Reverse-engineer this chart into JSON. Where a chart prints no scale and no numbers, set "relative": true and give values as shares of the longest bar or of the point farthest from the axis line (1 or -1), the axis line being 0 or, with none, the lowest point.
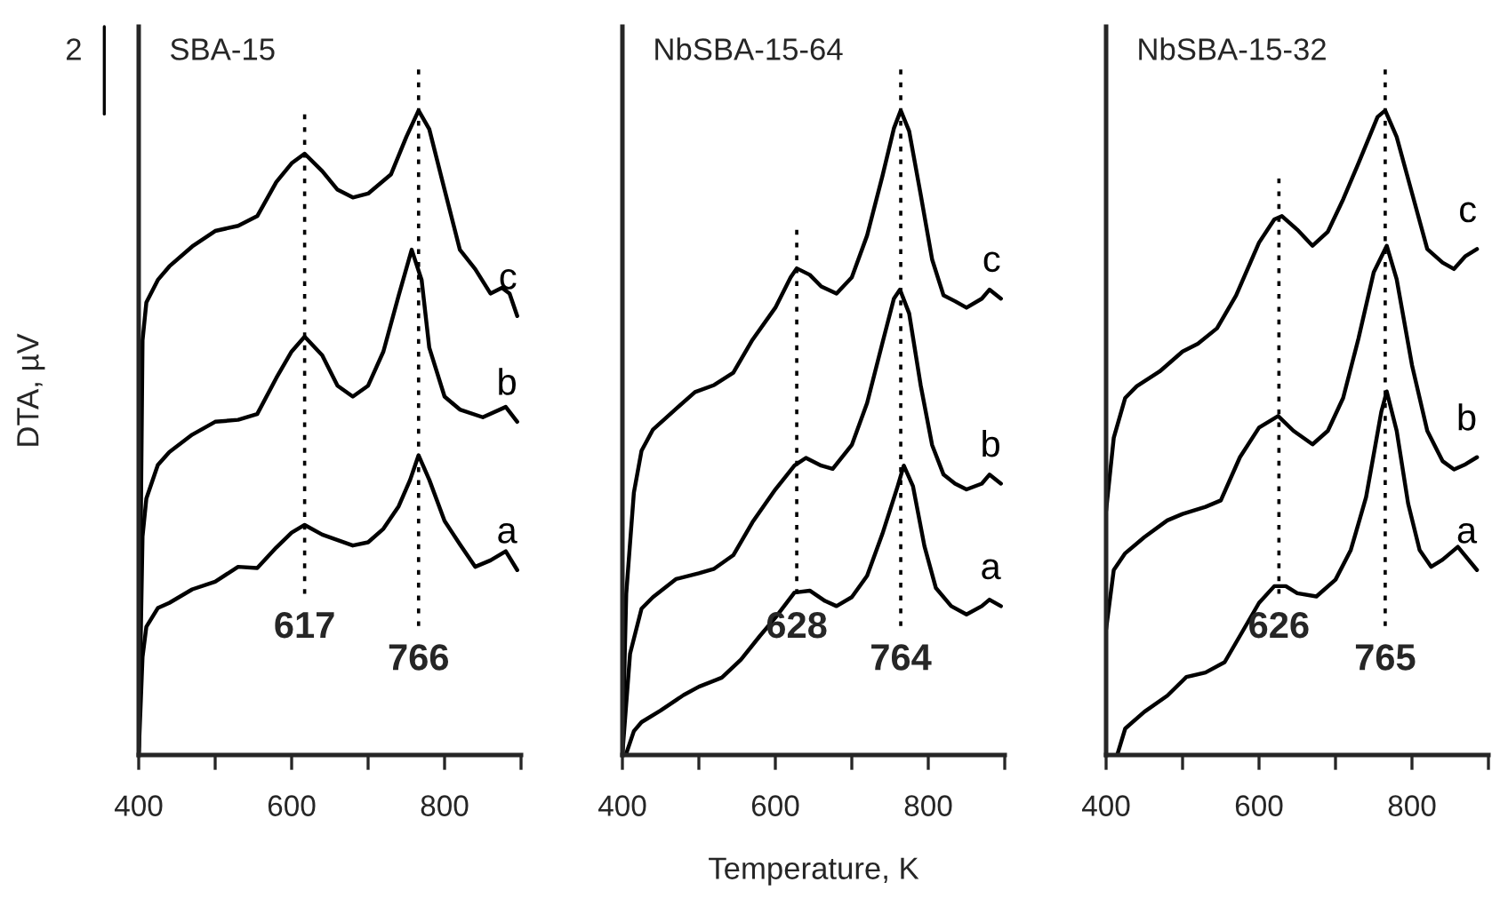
{
  "chart_data": [
    {
      "type": "line",
      "title": "SBA-15",
      "ylabel": "DTA, µV",
      "relative": true,
      "xlim": [
        400,
        900
      ],
      "xticks": [
        400,
        {
          "value": 500,
          "label": null
        },
        600,
        {
          "value": 700,
          "label": null
        },
        800,
        {
          "value": 900,
          "label": null
        }
      ],
      "annotations": [
        "2"
      ],
      "ref_lines": [
        {
          "axis": "x",
          "value": 617,
          "label": "617"
        },
        {
          "axis": "x",
          "value": 766,
          "label": "766"
        }
      ],
      "series": [
        {
          "name": "a",
          "color": "#000000",
          "x": [
            400,
            405,
            410,
            425,
            440,
            470,
            500,
            530,
            555,
            580,
            600,
            617,
            640,
            680,
            700,
            720,
            740,
            755,
            766,
            780,
            800,
            820,
            840,
            860,
            880,
            895
          ],
          "values": [
            0.002,
            0.152,
            0.199,
            0.228,
            0.236,
            0.257,
            0.269,
            0.292,
            0.29,
            0.322,
            0.345,
            0.357,
            0.342,
            0.325,
            0.33,
            0.351,
            0.386,
            0.427,
            0.465,
            0.427,
            0.363,
            0.327,
            0.292,
            0.302,
            0.316,
            0.287
          ]
        },
        {
          "name": "b",
          "color": "#000000",
          "x": [
            400,
            405,
            410,
            425,
            440,
            470,
            500,
            530,
            555,
            580,
            600,
            617,
            640,
            660,
            680,
            700,
            720,
            740,
            757,
            770,
            780,
            800,
            820,
            850,
            880,
            895
          ],
          "values": [
            0.006,
            0.339,
            0.398,
            0.45,
            0.47,
            0.497,
            0.517,
            0.52,
            0.529,
            0.585,
            0.626,
            0.649,
            0.62,
            0.573,
            0.556,
            0.573,
            0.626,
            0.713,
            0.784,
            0.737,
            0.632,
            0.556,
            0.536,
            0.524,
            0.54,
            0.517
          ]
        },
        {
          "name": "c",
          "color": "#000000",
          "x": [
            400,
            405,
            410,
            425,
            440,
            470,
            500,
            530,
            555,
            580,
            600,
            617,
            640,
            660,
            680,
            700,
            730,
            750,
            766,
            780,
            800,
            820,
            840,
            860,
            875,
            885,
            895
          ],
          "values": [
            0.012,
            0.643,
            0.702,
            0.737,
            0.758,
            0.789,
            0.813,
            0.821,
            0.836,
            0.889,
            0.918,
            0.933,
            0.906,
            0.877,
            0.865,
            0.871,
            0.901,
            0.959,
            1,
            0.971,
            0.877,
            0.784,
            0.754,
            0.716,
            0.725,
            0.716,
            0.681
          ]
        }
      ]
    },
    {
      "type": "line",
      "title": "NbSBA-15-64",
      "xlabel": "Temperature, K",
      "relative": true,
      "xlim": [
        400,
        900
      ],
      "xticks": [
        400,
        {
          "value": 500,
          "label": null
        },
        600,
        {
          "value": 700,
          "label": null
        },
        800,
        {
          "value": 900,
          "label": null
        }
      ],
      "ref_lines": [
        {
          "axis": "x",
          "value": 628,
          "label": "628"
        },
        {
          "axis": "x",
          "value": 764,
          "label": "764"
        }
      ],
      "series": [
        {
          "name": "a",
          "color": "#000000",
          "x": [
            405,
            415,
            425,
            450,
            480,
            500,
            530,
            555,
            580,
            600,
            625,
            645,
            665,
            680,
            700,
            720,
            740,
            760,
            768,
            780,
            795,
            810,
            830,
            850,
            870,
            880,
            895
          ],
          "values": [
            0.002,
            0.037,
            0.051,
            0.069,
            0.093,
            0.106,
            0.12,
            0.148,
            0.185,
            0.213,
            0.252,
            0.255,
            0.239,
            0.231,
            0.245,
            0.278,
            0.343,
            0.417,
            0.449,
            0.417,
            0.324,
            0.259,
            0.231,
            0.218,
            0.231,
            0.241,
            0.231
          ]
        },
        {
          "name": "b",
          "color": "#000000",
          "x": [
            400,
            410,
            425,
            440,
            470,
            500,
            520,
            545,
            570,
            600,
            625,
            640,
            660,
            675,
            700,
            720,
            740,
            755,
            763,
            775,
            790,
            805,
            820,
            835,
            850,
            870,
            880,
            895
          ],
          "values": [
            0.002,
            0.157,
            0.227,
            0.245,
            0.273,
            0.282,
            0.289,
            0.31,
            0.361,
            0.412,
            0.449,
            0.461,
            0.449,
            0.444,
            0.481,
            0.546,
            0.639,
            0.708,
            0.722,
            0.685,
            0.574,
            0.481,
            0.435,
            0.421,
            0.412,
            0.421,
            0.435,
            0.421
          ]
        },
        {
          "name": "c",
          "color": "#000000",
          "x": [
            400,
            405,
            415,
            425,
            440,
            470,
            495,
            520,
            545,
            570,
            600,
            620,
            628,
            645,
            660,
            680,
            700,
            720,
            740,
            755,
            764,
            775,
            790,
            805,
            820,
            835,
            850,
            870,
            880,
            895
          ],
          "values": [
            0.005,
            0.25,
            0.407,
            0.472,
            0.505,
            0.537,
            0.563,
            0.574,
            0.593,
            0.644,
            0.694,
            0.741,
            0.755,
            0.745,
            0.727,
            0.716,
            0.741,
            0.806,
            0.898,
            0.972,
            1,
            0.968,
            0.87,
            0.769,
            0.713,
            0.704,
            0.694,
            0.708,
            0.722,
            0.708
          ]
        }
      ]
    },
    {
      "type": "line",
      "title": "NbSBA-15-32",
      "relative": true,
      "xlim": [
        400,
        900
      ],
      "xticks": [
        400,
        {
          "value": 500,
          "label": null
        },
        600,
        {
          "value": 700,
          "label": null
        },
        800,
        {
          "value": 900,
          "label": null
        }
      ],
      "ref_lines": [
        {
          "axis": "x",
          "value": 626,
          "label": "626"
        },
        {
          "axis": "x",
          "value": 765,
          "label": "765"
        }
      ],
      "series": [
        {
          "name": "a",
          "color": "#000000",
          "x": [
            415,
            425,
            450,
            480,
            505,
            530,
            555,
            580,
            600,
            620,
            635,
            650,
            675,
            700,
            720,
            740,
            760,
            767,
            780,
            795,
            810,
            825,
            840,
            860,
            885
          ],
          "values": [
            0.002,
            0.041,
            0.067,
            0.092,
            0.121,
            0.128,
            0.144,
            0.195,
            0.236,
            0.262,
            0.262,
            0.251,
            0.246,
            0.272,
            0.318,
            0.4,
            0.533,
            0.564,
            0.503,
            0.39,
            0.318,
            0.292,
            0.303,
            0.323,
            0.287
          ]
        },
        {
          "name": "b",
          "color": "#000000",
          "x": [
            400,
            410,
            425,
            450,
            480,
            500,
            530,
            550,
            575,
            600,
            625,
            645,
            670,
            690,
            710,
            730,
            750,
            767,
            780,
            800,
            820,
            840,
            855,
            870,
            885
          ],
          "values": [
            0.195,
            0.287,
            0.313,
            0.338,
            0.364,
            0.374,
            0.385,
            0.395,
            0.462,
            0.508,
            0.526,
            0.503,
            0.482,
            0.503,
            0.554,
            0.646,
            0.749,
            0.79,
            0.738,
            0.605,
            0.503,
            0.456,
            0.443,
            0.451,
            0.462
          ]
        },
        {
          "name": "c",
          "color": "#000000",
          "x": [
            400,
            410,
            425,
            440,
            470,
            500,
            520,
            545,
            570,
            600,
            620,
            630,
            650,
            670,
            690,
            710,
            730,
            755,
            765,
            780,
            800,
            820,
            840,
            855,
            870,
            885
          ],
          "values": [
            0.379,
            0.492,
            0.554,
            0.572,
            0.595,
            0.626,
            0.638,
            0.662,
            0.713,
            0.795,
            0.831,
            0.836,
            0.815,
            0.79,
            0.812,
            0.862,
            0.918,
            0.99,
            1,
            0.959,
            0.872,
            0.785,
            0.764,
            0.754,
            0.774,
            0.785
          ]
        }
      ]
    }
  ]
}
